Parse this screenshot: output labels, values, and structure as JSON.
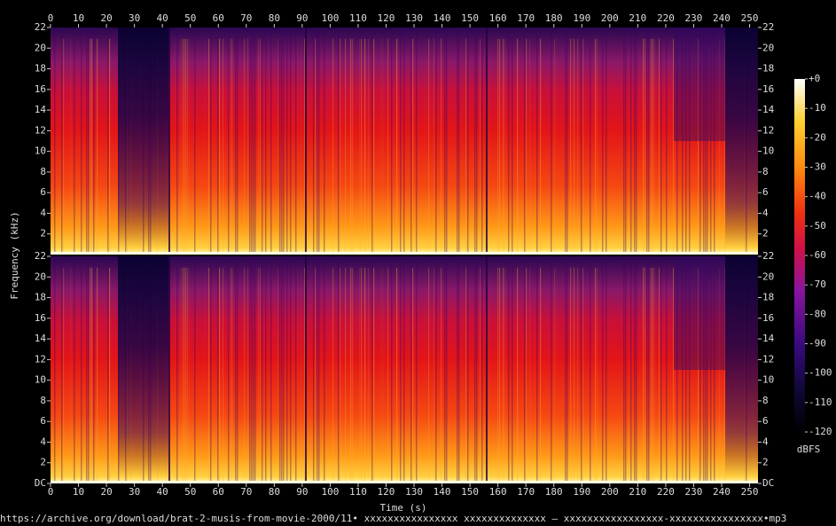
{
  "chart_data": {
    "type": "spectrogram",
    "xlabel": "Time (s)",
    "ylabel": "Frequency (kHz)",
    "xlim": [
      0,
      253
    ],
    "xticks": [
      0,
      10,
      20,
      30,
      40,
      50,
      60,
      70,
      80,
      90,
      100,
      110,
      120,
      130,
      140,
      150,
      160,
      170,
      180,
      190,
      200,
      210,
      220,
      230,
      240,
      250
    ],
    "channels": [
      {
        "ylim": [
          0,
          22
        ],
        "yticks": [
          2,
          4,
          6,
          8,
          10,
          12,
          14,
          16,
          18,
          20,
          22
        ]
      },
      {
        "ylim": [
          0,
          22
        ],
        "yticks": [
          {
            "value": 0,
            "label": "DC"
          },
          2,
          4,
          6,
          8,
          10,
          12,
          14,
          16,
          18,
          20,
          22
        ]
      }
    ],
    "colorbar": {
      "label": "dBFS",
      "clim": [
        -120,
        0
      ],
      "ticks": [
        {
          "value": 0,
          "label": "+0"
        },
        -10,
        -20,
        -30,
        -40,
        -50,
        -60,
        -70,
        -80,
        -90,
        -100,
        -110,
        -120
      ]
    },
    "source": "https://archive.org/download/brat-2-musis-from-movie-2000/11• xxxxxxxxxxxxxxxx xxxxxxxxxxxxxx – xxxxxxxxxxxxxxxxx-xxxxxxxxxxxxxxxx•mp3"
  }
}
